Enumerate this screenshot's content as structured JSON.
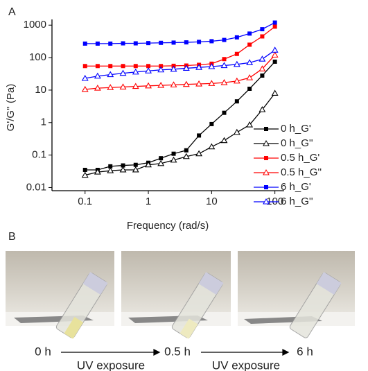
{
  "panel_labels": [
    "A",
    "B"
  ],
  "chart_data": {
    "type": "line",
    "xscale": "log",
    "yscale": "log",
    "x_label": "Frequency (rad/s)",
    "y_label": "G'/G'' (Pa)",
    "x": [
      0.1,
      0.158,
      0.251,
      0.398,
      0.631,
      1,
      1.58,
      2.51,
      3.98,
      6.31,
      10,
      15.8,
      25.1,
      39.8,
      63.1,
      100
    ],
    "xlim": [
      0.03,
      140
    ],
    "xticks": [
      0.1,
      1,
      10,
      100
    ],
    "ylim": [
      0.008,
      1500
    ],
    "yticks": [
      0.01,
      0.1,
      1,
      10,
      100,
      1000
    ],
    "legend": "right",
    "series": [
      {
        "name": "0 h_G'",
        "color": "#000000",
        "marker": "square",
        "values": [
          0.035,
          0.035,
          0.045,
          0.048,
          0.05,
          0.058,
          0.08,
          0.11,
          0.14,
          0.4,
          0.9,
          2,
          4.5,
          11,
          28,
          75
        ]
      },
      {
        "name": "0 h_G''",
        "color": "#000000",
        "marker": "triangle",
        "values": [
          0.024,
          0.03,
          0.033,
          0.035,
          0.035,
          0.05,
          0.055,
          0.07,
          0.09,
          0.11,
          0.18,
          0.28,
          0.5,
          0.85,
          2.5,
          8
        ]
      },
      {
        "name": "0.5 h_G'",
        "color": "#ff0000",
        "marker": "square",
        "values": [
          55,
          55,
          55,
          55,
          55,
          55,
          55,
          56,
          57,
          60,
          65,
          90,
          130,
          250,
          450,
          900
        ]
      },
      {
        "name": "0.5 h_G''",
        "color": "#ff0000",
        "marker": "triangle",
        "values": [
          10.5,
          11.5,
          12,
          12.5,
          13,
          13.5,
          14,
          14.5,
          15,
          15.5,
          16,
          17,
          19,
          24,
          45,
          120
        ]
      },
      {
        "name": "6 h_G'",
        "color": "#0000ff",
        "marker": "square",
        "values": [
          270,
          270,
          270,
          275,
          275,
          280,
          285,
          290,
          295,
          305,
          320,
          350,
          420,
          550,
          750,
          1200
        ]
      },
      {
        "name": "6 h_G''",
        "color": "#0000ff",
        "marker": "triangle",
        "values": [
          23,
          27,
          30,
          33,
          36,
          39,
          42,
          44,
          47,
          50,
          53,
          57,
          62,
          70,
          90,
          170
        ]
      }
    ]
  },
  "panel_b": {
    "times": [
      "0 h",
      "0.5 h",
      "6 h"
    ],
    "arrow_labels": [
      "UV exposure",
      "UV exposure"
    ]
  }
}
